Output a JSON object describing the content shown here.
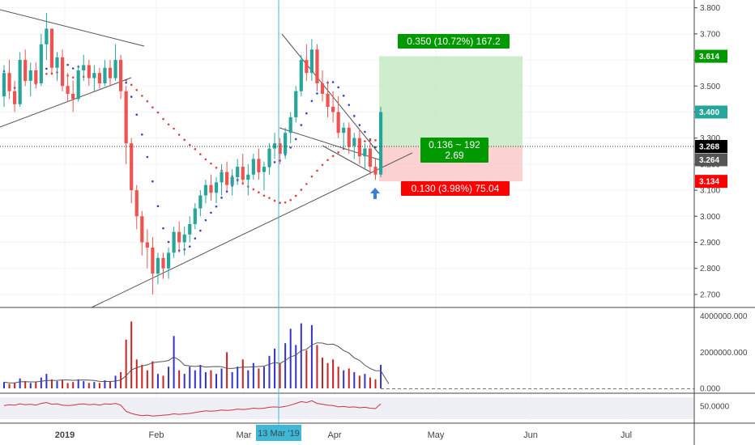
{
  "colors": {
    "up": "#26a69a",
    "down": "#ef5350",
    "target": "#009900",
    "stop": "#ff0000",
    "last": "#000000",
    "prev": "#555555",
    "crosshair": "#3db8d6",
    "arrow": "#3d7fd6",
    "volUp": "#3333cc",
    "volDown": "#cc2222",
    "rsi": "#cc3344"
  },
  "price_axis": {
    "ticks": [
      "3.800",
      "3.700",
      "3.600",
      "3.500",
      "3.400",
      "3.300",
      "3.200",
      "3.100",
      "3.000",
      "2.900",
      "2.800",
      "2.700"
    ],
    "tags": {
      "target": "3.614",
      "current": "3.400",
      "last": "3.268",
      "prev": "3.264",
      "stop": "3.134"
    }
  },
  "volume_axis": {
    "ticks": [
      "4000000.000",
      "2000000.000",
      "0.000"
    ]
  },
  "rsi_axis": {
    "ticks": [
      "50.0000"
    ]
  },
  "x_axis": {
    "labels": [
      "2019",
      "Feb",
      "Mar",
      "Apr",
      "May",
      "Jun",
      "Jul"
    ],
    "crosshair_label": "13 Mar '19"
  },
  "position": {
    "target_label": "0.350 (10.72%) 167.2",
    "ratio_line1": "0.136 ~ 192",
    "ratio_line2": "2.69",
    "stop_label": "0.130 (3.98%) 75.04"
  },
  "chart_data": {
    "type": "candlestick",
    "ylim": [
      2.65,
      3.83
    ],
    "entry": 3.268,
    "target": 3.614,
    "stop": 3.134,
    "candles": [
      [
        3.46,
        3.58,
        3.42,
        3.55
      ],
      [
        3.55,
        3.6,
        3.45,
        3.48
      ],
      [
        3.48,
        3.52,
        3.4,
        3.43
      ],
      [
        3.43,
        3.63,
        3.42,
        3.6
      ],
      [
        3.6,
        3.64,
        3.5,
        3.52
      ],
      [
        3.52,
        3.59,
        3.46,
        3.56
      ],
      [
        3.56,
        3.59,
        3.49,
        3.51
      ],
      [
        3.51,
        3.7,
        3.5,
        3.66
      ],
      [
        3.66,
        3.78,
        3.6,
        3.72
      ],
      [
        3.72,
        3.72,
        3.55,
        3.57
      ],
      [
        3.57,
        3.63,
        3.52,
        3.61
      ],
      [
        3.61,
        3.64,
        3.48,
        3.5
      ],
      [
        3.5,
        3.55,
        3.44,
        3.47
      ],
      [
        3.47,
        3.52,
        3.4,
        3.45
      ],
      [
        3.45,
        3.58,
        3.44,
        3.56
      ],
      [
        3.56,
        3.62,
        3.52,
        3.58
      ],
      [
        3.58,
        3.6,
        3.5,
        3.53
      ],
      [
        3.53,
        3.58,
        3.48,
        3.55
      ],
      [
        3.55,
        3.57,
        3.49,
        3.51
      ],
      [
        3.51,
        3.6,
        3.5,
        3.57
      ],
      [
        3.57,
        3.6,
        3.5,
        3.53
      ],
      [
        3.53,
        3.66,
        3.52,
        3.6
      ],
      [
        3.6,
        3.62,
        3.45,
        3.48
      ],
      [
        3.48,
        3.5,
        3.2,
        3.28
      ],
      [
        3.28,
        3.3,
        3.05,
        3.1
      ],
      [
        3.1,
        3.12,
        2.95,
        3.0
      ],
      [
        3.0,
        3.02,
        2.85,
        2.9
      ],
      [
        2.9,
        2.95,
        2.8,
        2.88
      ],
      [
        2.88,
        2.92,
        2.7,
        2.78
      ],
      [
        2.78,
        2.86,
        2.74,
        2.84
      ],
      [
        2.84,
        2.86,
        2.76,
        2.8
      ],
      [
        2.8,
        2.88,
        2.76,
        2.86
      ],
      [
        2.86,
        2.96,
        2.84,
        2.94
      ],
      [
        2.94,
        2.98,
        2.86,
        2.9
      ],
      [
        2.9,
        2.96,
        2.85,
        2.93
      ],
      [
        2.93,
        3.0,
        2.9,
        2.97
      ],
      [
        2.97,
        3.05,
        2.95,
        3.03
      ],
      [
        3.03,
        3.1,
        3.0,
        3.08
      ],
      [
        3.08,
        3.14,
        3.05,
        3.12
      ],
      [
        3.12,
        3.16,
        3.06,
        3.09
      ],
      [
        3.09,
        3.15,
        3.05,
        3.13
      ],
      [
        3.13,
        3.2,
        3.08,
        3.17
      ],
      [
        3.17,
        3.21,
        3.1,
        3.12
      ],
      [
        3.12,
        3.18,
        3.08,
        3.15
      ],
      [
        3.15,
        3.22,
        3.12,
        3.19
      ],
      [
        3.19,
        3.24,
        3.12,
        3.14
      ],
      [
        3.14,
        3.2,
        3.08,
        3.16
      ],
      [
        3.16,
        3.24,
        3.14,
        3.22
      ],
      [
        3.22,
        3.26,
        3.14,
        3.17
      ],
      [
        3.17,
        3.21,
        3.1,
        3.19
      ],
      [
        3.19,
        3.28,
        3.16,
        3.26
      ],
      [
        3.26,
        3.32,
        3.22,
        3.28
      ],
      [
        3.28,
        3.3,
        3.2,
        3.24
      ],
      [
        3.24,
        3.34,
        3.22,
        3.32
      ],
      [
        3.32,
        3.4,
        3.28,
        3.38
      ],
      [
        3.38,
        3.5,
        3.36,
        3.48
      ],
      [
        3.48,
        3.62,
        3.46,
        3.6
      ],
      [
        3.6,
        3.66,
        3.52,
        3.55
      ],
      [
        3.55,
        3.68,
        3.52,
        3.64
      ],
      [
        3.64,
        3.66,
        3.48,
        3.51
      ],
      [
        3.51,
        3.56,
        3.44,
        3.47
      ],
      [
        3.47,
        3.52,
        3.38,
        3.42
      ],
      [
        3.42,
        3.48,
        3.36,
        3.4
      ],
      [
        3.4,
        3.46,
        3.3,
        3.32
      ],
      [
        3.32,
        3.36,
        3.26,
        3.34
      ],
      [
        3.34,
        3.36,
        3.24,
        3.27
      ],
      [
        3.27,
        3.32,
        3.22,
        3.3
      ],
      [
        3.3,
        3.33,
        3.2,
        3.23
      ],
      [
        3.23,
        3.28,
        3.18,
        3.26
      ],
      [
        3.26,
        3.28,
        3.16,
        3.19
      ],
      [
        3.19,
        3.22,
        3.14,
        3.16
      ],
      [
        3.16,
        3.42,
        3.15,
        3.4
      ]
    ],
    "volume": [
      0.35,
      0.25,
      0.3,
      0.55,
      0.4,
      0.3,
      0.35,
      0.6,
      0.8,
      0.5,
      0.4,
      0.45,
      0.3,
      0.35,
      0.5,
      0.4,
      0.3,
      0.35,
      0.3,
      0.45,
      0.4,
      0.7,
      0.9,
      2.7,
      3.7,
      1.6,
      1.3,
      1.0,
      1.5,
      0.8,
      0.7,
      1.2,
      2.9,
      1.0,
      0.8,
      1.2,
      1.0,
      1.3,
      0.9,
      1.0,
      0.8,
      1.1,
      2.0,
      0.9,
      1.2,
      1.6,
      1.0,
      1.4,
      1.1,
      1.2,
      1.8,
      2.2,
      1.4,
      2.5,
      3.3,
      2.4,
      3.6,
      2.1,
      3.5,
      2.4,
      1.7,
      1.4,
      1.6,
      1.2,
      1.0,
      1.1,
      0.9,
      0.7,
      0.8,
      0.6,
      0.5,
      1.3
    ],
    "volume_scale": "millions",
    "rsi": [
      51,
      53,
      52,
      55,
      53,
      54,
      52,
      56,
      58,
      54,
      55,
      52,
      51,
      52,
      54,
      55,
      53,
      54,
      52,
      55,
      54,
      56,
      52,
      38,
      33,
      30,
      28,
      29,
      27,
      28,
      29,
      30,
      32,
      31,
      32,
      33,
      35,
      37,
      39,
      38,
      39,
      41,
      40,
      41,
      43,
      42,
      43,
      45,
      44,
      45,
      47,
      48,
      47,
      49,
      52,
      56,
      60,
      58,
      62,
      56,
      54,
      52,
      51,
      48,
      49,
      47,
      48,
      46,
      47,
      45,
      44,
      55
    ]
  }
}
